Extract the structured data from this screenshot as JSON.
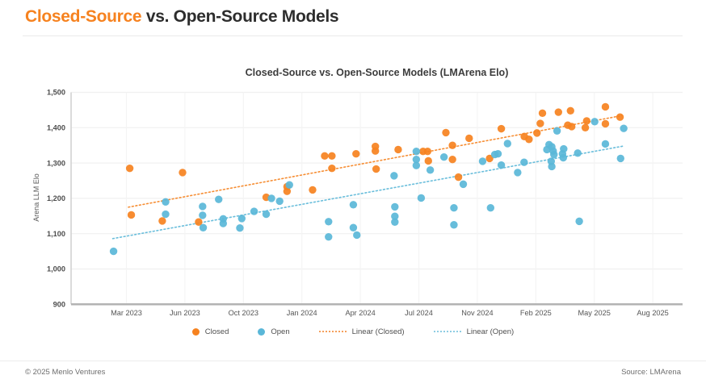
{
  "page": {
    "title": {
      "accent": "Closed-Source",
      "rest": " vs. Open-Source Models"
    },
    "footer": {
      "copyright": "© 2025 Menlo Ventures",
      "source": "Source: LMArena"
    }
  },
  "colors": {
    "closed": "#f6821f",
    "open": "#5ab7d8",
    "heading_accent": "#f6821f",
    "heading_text": "#2d2d2d",
    "grid": "#f0f0f0",
    "axis_line": "#b3b3b3",
    "tick_text": "#4d4d4d"
  },
  "chart_data": {
    "type": "scatter",
    "title": "Closed-Source vs. Open-Source Models (LMArena Elo)",
    "xlabel": "",
    "ylabel": "Arena LLM Elo",
    "ylim": [
      900,
      1500
    ],
    "grid": true,
    "legend_position": "bottom",
    "x_unit_note": "x = months since Jan 2023 (2 = Mar 2023, 31 = Aug 2025)",
    "yticks": [
      {
        "value": 900,
        "label": "900"
      },
      {
        "value": 1000,
        "label": "1,000"
      },
      {
        "value": 1100,
        "label": "1,100"
      },
      {
        "value": 1200,
        "label": "1,200"
      },
      {
        "value": 1300,
        "label": "1,300"
      },
      {
        "value": 1400,
        "label": "1,400"
      },
      {
        "value": 1500,
        "label": "1,500"
      }
    ],
    "xticks": [
      {
        "label": "Mar 2023",
        "m": 2
      },
      {
        "label": "Jun 2023",
        "m": 5
      },
      {
        "label": "Oct 2023",
        "m": 9
      },
      {
        "label": "Jan 2024",
        "m": 12
      },
      {
        "label": "Apr 2024",
        "m": 15
      },
      {
        "label": "Jul 2024",
        "m": 18
      },
      {
        "label": "Nov 2024",
        "m": 22
      },
      {
        "label": "Feb 2025",
        "m": 25
      },
      {
        "label": "May 2025",
        "m": 28
      },
      {
        "label": "Aug 2025",
        "m": 31
      }
    ],
    "series": [
      {
        "name": "Closed",
        "color": "#f6821f",
        "points": [
          [
            2.17,
            1285
          ],
          [
            2.25,
            1153
          ],
          [
            3.84,
            1136
          ],
          [
            4.88,
            1273
          ],
          [
            5.94,
            1133
          ],
          [
            10.17,
            1203
          ],
          [
            11.24,
            1233
          ],
          [
            11.24,
            1220
          ],
          [
            12.55,
            1224
          ],
          [
            13.17,
            1320
          ],
          [
            13.54,
            1320
          ],
          [
            13.54,
            1285
          ],
          [
            14.78,
            1326
          ],
          [
            15.77,
            1347
          ],
          [
            15.77,
            1334
          ],
          [
            15.81,
            1283
          ],
          [
            16.94,
            1338
          ],
          [
            18.29,
            1333
          ],
          [
            18.6,
            1333
          ],
          [
            18.65,
            1306
          ],
          [
            19.85,
            1386
          ],
          [
            20.3,
            1350
          ],
          [
            20.3,
            1310
          ],
          [
            20.71,
            1260
          ],
          [
            21.44,
            1370
          ],
          [
            22.63,
            1313
          ],
          [
            23.23,
            1397
          ],
          [
            24.41,
            1375
          ],
          [
            24.65,
            1367
          ],
          [
            25.06,
            1385
          ],
          [
            25.23,
            1412
          ],
          [
            25.34,
            1441
          ],
          [
            26.16,
            1444
          ],
          [
            26.64,
            1407
          ],
          [
            26.78,
            1448
          ],
          [
            26.84,
            1403
          ],
          [
            27.54,
            1400
          ],
          [
            27.61,
            1419
          ],
          [
            28.57,
            1459
          ],
          [
            28.57,
            1411
          ],
          [
            29.32,
            1430
          ]
        ]
      },
      {
        "name": "Open",
        "color": "#5ab7d8",
        "points": [
          [
            1.34,
            1050
          ],
          [
            4.01,
            1190
          ],
          [
            4.01,
            1155
          ],
          [
            6.21,
            1177
          ],
          [
            6.21,
            1152
          ],
          [
            6.25,
            1117
          ],
          [
            7.31,
            1197
          ],
          [
            7.62,
            1142
          ],
          [
            7.62,
            1129
          ],
          [
            8.76,
            1116
          ],
          [
            8.89,
            1143
          ],
          [
            9.55,
            1163
          ],
          [
            10.17,
            1155
          ],
          [
            10.44,
            1200
          ],
          [
            10.86,
            1192
          ],
          [
            11.36,
            1238
          ],
          [
            13.37,
            1134
          ],
          [
            13.37,
            1091
          ],
          [
            14.64,
            1182
          ],
          [
            14.64,
            1117
          ],
          [
            14.82,
            1096
          ],
          [
            16.73,
            1264
          ],
          [
            16.77,
            1176
          ],
          [
            16.77,
            1149
          ],
          [
            16.77,
            1133
          ],
          [
            17.87,
            1333
          ],
          [
            17.87,
            1310
          ],
          [
            17.87,
            1293
          ],
          [
            18.16,
            1201
          ],
          [
            18.78,
            1280
          ],
          [
            19.72,
            1317
          ],
          [
            20.4,
            1173
          ],
          [
            20.4,
            1125
          ],
          [
            21.04,
            1240
          ],
          [
            22.27,
            1305
          ],
          [
            22.68,
            1173
          ],
          [
            22.9,
            1324
          ],
          [
            23.06,
            1326
          ],
          [
            23.23,
            1294
          ],
          [
            23.55,
            1355
          ],
          [
            24.07,
            1273
          ],
          [
            24.4,
            1302
          ],
          [
            25.57,
            1338
          ],
          [
            25.68,
            1352
          ],
          [
            25.79,
            1305
          ],
          [
            25.82,
            1346
          ],
          [
            25.82,
            1290
          ],
          [
            25.89,
            1334
          ],
          [
            25.93,
            1324
          ],
          [
            26.09,
            1391
          ],
          [
            26.37,
            1326
          ],
          [
            26.41,
            1315
          ],
          [
            26.43,
            1340
          ],
          [
            27.15,
            1328
          ],
          [
            27.23,
            1135
          ],
          [
            28.02,
            1417
          ],
          [
            28.57,
            1354
          ],
          [
            29.35,
            1313
          ],
          [
            29.51,
            1398
          ]
        ]
      }
    ],
    "trendlines": [
      {
        "name": "Linear (Closed)",
        "color": "#f6821f",
        "start": [
          2.1,
          1175
        ],
        "end": [
          29.4,
          1434
        ]
      },
      {
        "name": "Linear (Open)",
        "color": "#5ab7d8",
        "start": [
          1.3,
          1086
        ],
        "end": [
          29.5,
          1348
        ]
      }
    ],
    "legend": [
      {
        "label": "Closed",
        "marker": "dot"
      },
      {
        "label": "Open",
        "marker": "dot"
      },
      {
        "label": "Linear (Closed)",
        "marker": "dotted-line"
      },
      {
        "label": "Linear (Open)",
        "marker": "dotted-line"
      }
    ]
  }
}
